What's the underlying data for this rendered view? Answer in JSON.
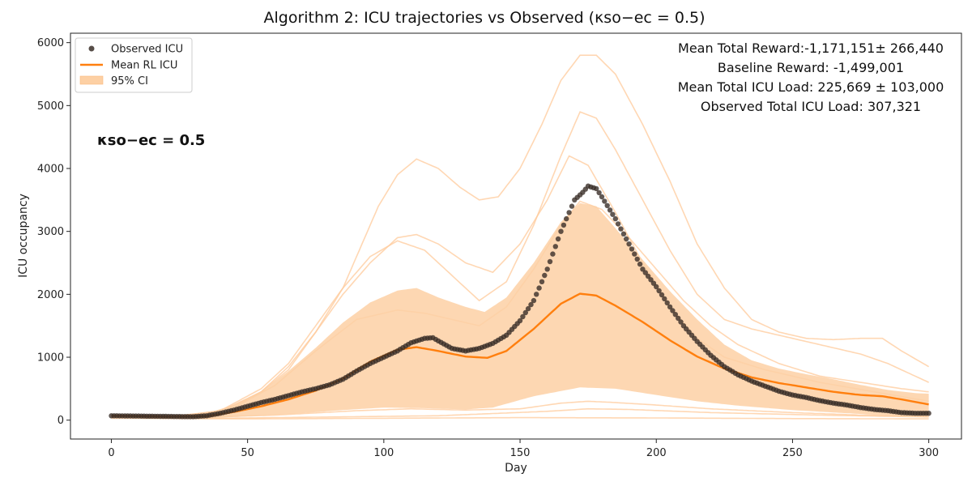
{
  "chart_data": {
    "type": "line",
    "title": "Algorithm 2: ICU trajectories vs Observed (κso−ec = 0.5)",
    "xlabel": "Day",
    "ylabel": "ICU occupancy",
    "xlim": [
      -15,
      312
    ],
    "ylim": [
      -300,
      6150
    ],
    "xticks": [
      0,
      50,
      100,
      150,
      200,
      250,
      300
    ],
    "yticks": [
      0,
      1000,
      2000,
      3000,
      4000,
      5000,
      6000
    ],
    "legend": {
      "position": "top-left",
      "entries": [
        "Observed ICU",
        "Mean RL ICU",
        "95% CI"
      ]
    },
    "stats_lines": [
      "Mean Total Reward:-1,171,151± 266,440",
      "Baseline Reward: -1,499,001",
      "Mean Total ICU Load: 225,669 ± 103,000",
      "Observed Total ICU Load: 307,321"
    ],
    "annotation": "κso−ec = 0.5",
    "colors": {
      "observed": "#3a2e28",
      "mean": "#ff7f0e",
      "ci_fill": "#fdd0a4",
      "trajectory": "#ffc99a"
    },
    "series": [
      {
        "name": "Observed ICU",
        "kind": "scatter",
        "knots": [
          [
            0,
            70
          ],
          [
            10,
            65
          ],
          [
            20,
            60
          ],
          [
            30,
            55
          ],
          [
            35,
            70
          ],
          [
            40,
            110
          ],
          [
            45,
            160
          ],
          [
            50,
            220
          ],
          [
            55,
            280
          ],
          [
            60,
            330
          ],
          [
            65,
            390
          ],
          [
            70,
            450
          ],
          [
            75,
            500
          ],
          [
            80,
            560
          ],
          [
            85,
            650
          ],
          [
            90,
            780
          ],
          [
            95,
            900
          ],
          [
            100,
            1000
          ],
          [
            105,
            1100
          ],
          [
            110,
            1230
          ],
          [
            115,
            1300
          ],
          [
            118,
            1310
          ],
          [
            120,
            1260
          ],
          [
            125,
            1140
          ],
          [
            130,
            1100
          ],
          [
            135,
            1140
          ],
          [
            140,
            1220
          ],
          [
            145,
            1350
          ],
          [
            150,
            1580
          ],
          [
            155,
            1900
          ],
          [
            160,
            2400
          ],
          [
            165,
            3000
          ],
          [
            170,
            3500
          ],
          [
            173,
            3620
          ],
          [
            175,
            3720
          ],
          [
            178,
            3680
          ],
          [
            180,
            3550
          ],
          [
            185,
            3200
          ],
          [
            190,
            2800
          ],
          [
            195,
            2400
          ],
          [
            200,
            2120
          ],
          [
            205,
            1800
          ],
          [
            210,
            1500
          ],
          [
            215,
            1250
          ],
          [
            220,
            1030
          ],
          [
            225,
            850
          ],
          [
            230,
            720
          ],
          [
            235,
            620
          ],
          [
            240,
            540
          ],
          [
            245,
            460
          ],
          [
            250,
            400
          ],
          [
            255,
            360
          ],
          [
            260,
            310
          ],
          [
            265,
            270
          ],
          [
            270,
            240
          ],
          [
            275,
            200
          ],
          [
            280,
            170
          ],
          [
            285,
            150
          ],
          [
            290,
            120
          ],
          [
            295,
            110
          ],
          [
            300,
            110
          ]
        ]
      },
      {
        "name": "Mean RL ICU",
        "kind": "line",
        "knots": [
          [
            0,
            70
          ],
          [
            20,
            55
          ],
          [
            35,
            60
          ],
          [
            45,
            130
          ],
          [
            55,
            220
          ],
          [
            65,
            330
          ],
          [
            75,
            470
          ],
          [
            85,
            660
          ],
          [
            95,
            930
          ],
          [
            105,
            1120
          ],
          [
            112,
            1160
          ],
          [
            120,
            1100
          ],
          [
            130,
            1010
          ],
          [
            138,
            990
          ],
          [
            145,
            1100
          ],
          [
            155,
            1450
          ],
          [
            165,
            1850
          ],
          [
            172,
            2010
          ],
          [
            178,
            1980
          ],
          [
            185,
            1820
          ],
          [
            195,
            1560
          ],
          [
            205,
            1270
          ],
          [
            215,
            1010
          ],
          [
            225,
            820
          ],
          [
            235,
            680
          ],
          [
            245,
            590
          ],
          [
            255,
            520
          ],
          [
            265,
            450
          ],
          [
            275,
            400
          ],
          [
            283,
            380
          ],
          [
            290,
            330
          ],
          [
            300,
            250
          ]
        ]
      },
      {
        "name": "95% CI",
        "kind": "band",
        "upper": [
          [
            0,
            80
          ],
          [
            20,
            70
          ],
          [
            35,
            100
          ],
          [
            45,
            230
          ],
          [
            55,
            450
          ],
          [
            65,
            780
          ],
          [
            75,
            1150
          ],
          [
            85,
            1550
          ],
          [
            95,
            1870
          ],
          [
            105,
            2060
          ],
          [
            112,
            2100
          ],
          [
            120,
            1950
          ],
          [
            130,
            1800
          ],
          [
            137,
            1720
          ],
          [
            145,
            1950
          ],
          [
            155,
            2500
          ],
          [
            165,
            3150
          ],
          [
            172,
            3450
          ],
          [
            178,
            3400
          ],
          [
            185,
            3050
          ],
          [
            195,
            2550
          ],
          [
            205,
            2050
          ],
          [
            215,
            1600
          ],
          [
            225,
            1200
          ],
          [
            235,
            950
          ],
          [
            245,
            820
          ],
          [
            255,
            730
          ],
          [
            265,
            650
          ],
          [
            275,
            560
          ],
          [
            285,
            480
          ],
          [
            295,
            430
          ],
          [
            300,
            420
          ]
        ],
        "lower": [
          [
            0,
            30
          ],
          [
            20,
            25
          ],
          [
            40,
            40
          ],
          [
            55,
            70
          ],
          [
            70,
            110
          ],
          [
            85,
            160
          ],
          [
            100,
            200
          ],
          [
            115,
            190
          ],
          [
            130,
            170
          ],
          [
            140,
            200
          ],
          [
            155,
            380
          ],
          [
            172,
            520
          ],
          [
            185,
            500
          ],
          [
            200,
            400
          ],
          [
            215,
            300
          ],
          [
            230,
            230
          ],
          [
            250,
            160
          ],
          [
            270,
            110
          ],
          [
            290,
            60
          ],
          [
            300,
            50
          ]
        ]
      },
      {
        "name": "RL trajectory 1",
        "kind": "trajectory",
        "knots": [
          [
            0,
            80
          ],
          [
            20,
            70
          ],
          [
            35,
            100
          ],
          [
            45,
            230
          ],
          [
            55,
            450
          ],
          [
            65,
            800
          ],
          [
            75,
            1400
          ],
          [
            85,
            2100
          ],
          [
            92,
            2800
          ],
          [
            98,
            3400
          ],
          [
            105,
            3900
          ],
          [
            112,
            4150
          ],
          [
            120,
            4000
          ],
          [
            128,
            3700
          ],
          [
            135,
            3500
          ],
          [
            142,
            3550
          ],
          [
            150,
            4000
          ],
          [
            158,
            4700
          ],
          [
            165,
            5400
          ],
          [
            172,
            5800
          ],
          [
            178,
            5800
          ],
          [
            185,
            5500
          ],
          [
            195,
            4700
          ],
          [
            205,
            3800
          ],
          [
            215,
            2800
          ],
          [
            225,
            2100
          ],
          [
            235,
            1600
          ],
          [
            245,
            1400
          ],
          [
            255,
            1300
          ],
          [
            265,
            1280
          ],
          [
            275,
            1300
          ],
          [
            283,
            1300
          ],
          [
            290,
            1100
          ],
          [
            300,
            850
          ]
        ]
      },
      {
        "name": "RL trajectory 2",
        "kind": "trajectory",
        "knots": [
          [
            0,
            80
          ],
          [
            25,
            70
          ],
          [
            40,
            150
          ],
          [
            55,
            500
          ],
          [
            65,
            900
          ],
          [
            75,
            1500
          ],
          [
            85,
            2100
          ],
          [
            95,
            2600
          ],
          [
            105,
            2850
          ],
          [
            115,
            2700
          ],
          [
            125,
            2300
          ],
          [
            135,
            1900
          ],
          [
            145,
            2200
          ],
          [
            155,
            3100
          ],
          [
            165,
            4200
          ],
          [
            172,
            4900
          ],
          [
            178,
            4800
          ],
          [
            185,
            4300
          ],
          [
            195,
            3500
          ],
          [
            205,
            2700
          ],
          [
            215,
            2000
          ],
          [
            225,
            1600
          ],
          [
            235,
            1450
          ],
          [
            245,
            1350
          ],
          [
            255,
            1250
          ],
          [
            265,
            1150
          ],
          [
            275,
            1050
          ],
          [
            285,
            900
          ],
          [
            300,
            600
          ]
        ]
      },
      {
        "name": "RL trajectory 3",
        "kind": "trajectory",
        "knots": [
          [
            0,
            80
          ],
          [
            25,
            70
          ],
          [
            40,
            140
          ],
          [
            55,
            450
          ],
          [
            65,
            850
          ],
          [
            75,
            1400
          ],
          [
            85,
            2000
          ],
          [
            95,
            2500
          ],
          [
            105,
            2900
          ],
          [
            112,
            2950
          ],
          [
            120,
            2800
          ],
          [
            130,
            2500
          ],
          [
            140,
            2350
          ],
          [
            150,
            2800
          ],
          [
            160,
            3500
          ],
          [
            168,
            4200
          ],
          [
            175,
            4050
          ],
          [
            185,
            3300
          ],
          [
            195,
            2500
          ],
          [
            205,
            1800
          ],
          [
            215,
            1300
          ],
          [
            225,
            1000
          ],
          [
            240,
            800
          ],
          [
            260,
            600
          ],
          [
            280,
            450
          ],
          [
            300,
            300
          ]
        ]
      },
      {
        "name": "RL trajectory 4",
        "kind": "trajectory",
        "knots": [
          [
            0,
            70
          ],
          [
            30,
            60
          ],
          [
            45,
            200
          ],
          [
            60,
            550
          ],
          [
            75,
            1100
          ],
          [
            90,
            1600
          ],
          [
            105,
            1750
          ],
          [
            115,
            1700
          ],
          [
            125,
            1600
          ],
          [
            135,
            1500
          ],
          [
            145,
            1800
          ],
          [
            155,
            2400
          ],
          [
            165,
            3100
          ],
          [
            172,
            3480
          ],
          [
            180,
            3350
          ],
          [
            190,
            2900
          ],
          [
            200,
            2400
          ],
          [
            210,
            1900
          ],
          [
            220,
            1500
          ],
          [
            230,
            1200
          ],
          [
            245,
            900
          ],
          [
            260,
            700
          ],
          [
            275,
            600
          ],
          [
            290,
            500
          ],
          [
            300,
            450
          ]
        ]
      },
      {
        "name": "RL trajectory 5",
        "kind": "trajectory",
        "knots": [
          [
            0,
            50
          ],
          [
            30,
            40
          ],
          [
            60,
            80
          ],
          [
            90,
            150
          ],
          [
            110,
            180
          ],
          [
            130,
            160
          ],
          [
            150,
            180
          ],
          [
            165,
            270
          ],
          [
            175,
            300
          ],
          [
            185,
            280
          ],
          [
            200,
            240
          ],
          [
            220,
            180
          ],
          [
            250,
            120
          ],
          [
            275,
            80
          ],
          [
            300,
            60
          ]
        ]
      },
      {
        "name": "RL trajectory 6",
        "kind": "trajectory",
        "knots": [
          [
            0,
            40
          ],
          [
            40,
            30
          ],
          [
            80,
            50
          ],
          [
            120,
            70
          ],
          [
            160,
            140
          ],
          [
            175,
            180
          ],
          [
            190,
            170
          ],
          [
            220,
            120
          ],
          [
            260,
            80
          ],
          [
            300,
            50
          ]
        ]
      },
      {
        "name": "RL trajectory 7",
        "kind": "trajectory",
        "knots": [
          [
            0,
            30
          ],
          [
            50,
            20
          ],
          [
            100,
            30
          ],
          [
            150,
            40
          ],
          [
            200,
            35
          ],
          [
            250,
            25
          ],
          [
            300,
            20
          ]
        ]
      }
    ]
  }
}
